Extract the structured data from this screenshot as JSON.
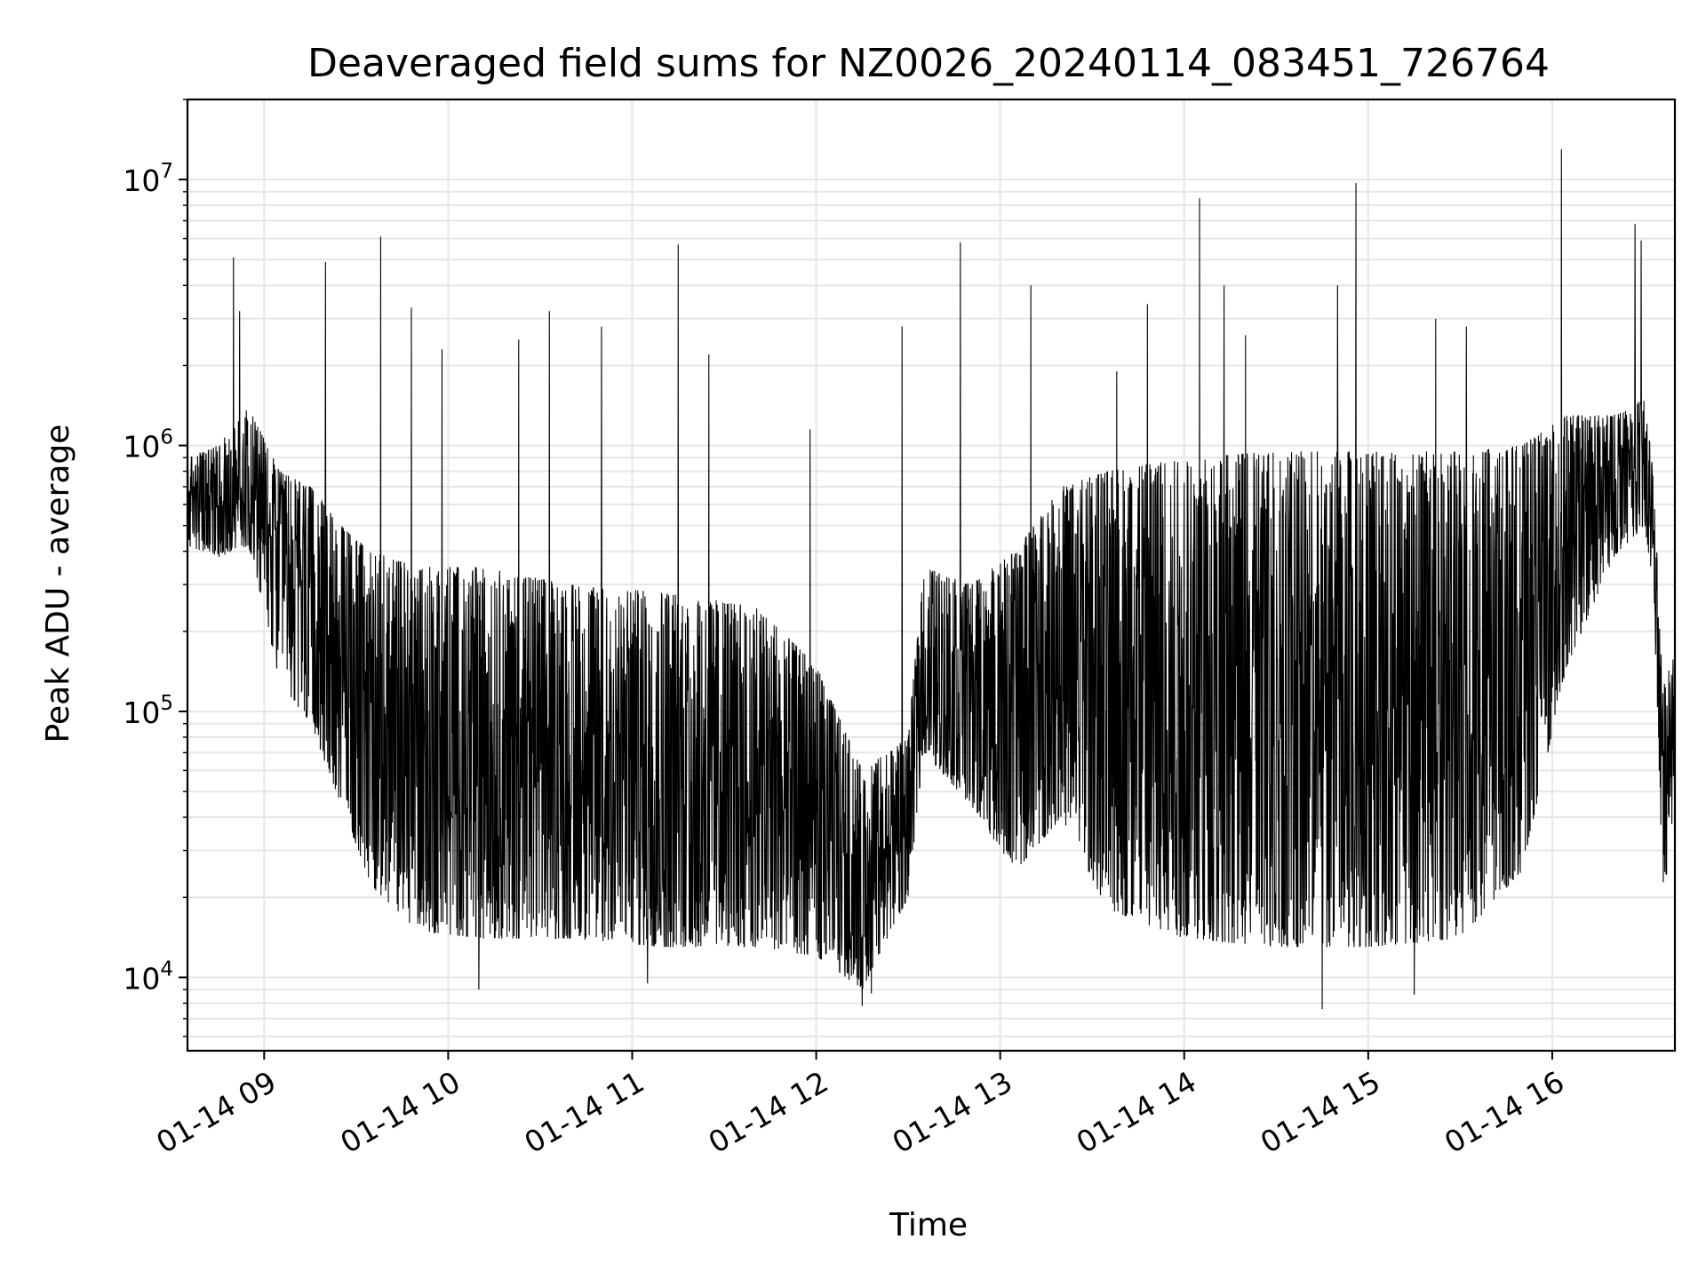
{
  "chart_data": {
    "type": "line",
    "title": "Deaveraged field sums for NZ0026_20240114_083451_726764",
    "xlabel": "Time",
    "ylabel": "Peak ADU - average",
    "yscale": "log",
    "ylim": [
      5300,
      20000000
    ],
    "xlim": [
      "2024-01-14 08:35",
      "2024-01-14 16:40"
    ],
    "grid": true,
    "line_color": "#000000",
    "grid_color": "#e6e6e6",
    "x_ticks": [
      {
        "value": "2024-01-14 09:00",
        "label": "01-14 09"
      },
      {
        "value": "2024-01-14 10:00",
        "label": "01-14 10"
      },
      {
        "value": "2024-01-14 11:00",
        "label": "01-14 11"
      },
      {
        "value": "2024-01-14 12:00",
        "label": "01-14 12"
      },
      {
        "value": "2024-01-14 13:00",
        "label": "01-14 13"
      },
      {
        "value": "2024-01-14 14:00",
        "label": "01-14 14"
      },
      {
        "value": "2024-01-14 15:00",
        "label": "01-14 15"
      },
      {
        "value": "2024-01-14 16:00",
        "label": "01-14 16"
      }
    ],
    "y_ticks": [
      {
        "value": 10000,
        "base": "10",
        "exp": "4"
      },
      {
        "value": 100000,
        "base": "10",
        "exp": "5"
      },
      {
        "value": 1000000,
        "base": "10",
        "exp": "6"
      },
      {
        "value": 10000000,
        "base": "10",
        "exp": "7"
      }
    ],
    "envelope": [
      {
        "t": "2024-01-14 08:35",
        "low": 420000,
        "high": 900000
      },
      {
        "t": "2024-01-14 08:45",
        "low": 380000,
        "high": 1000000
      },
      {
        "t": "2024-01-14 08:55",
        "low": 420000,
        "high": 1400000
      },
      {
        "t": "2024-01-14 09:05",
        "low": 130000,
        "high": 800000
      },
      {
        "t": "2024-01-14 09:15",
        "low": 90000,
        "high": 700000
      },
      {
        "t": "2024-01-14 09:25",
        "low": 45000,
        "high": 500000
      },
      {
        "t": "2024-01-14 09:35",
        "low": 22000,
        "high": 400000
      },
      {
        "t": "2024-01-14 09:50",
        "low": 15000,
        "high": 350000
      },
      {
        "t": "2024-01-14 10:10",
        "low": 14000,
        "high": 350000
      },
      {
        "t": "2024-01-14 10:40",
        "low": 14000,
        "high": 300000
      },
      {
        "t": "2024-01-14 11:10",
        "low": 13000,
        "high": 280000
      },
      {
        "t": "2024-01-14 11:40",
        "low": 13000,
        "high": 250000
      },
      {
        "t": "2024-01-14 12:00",
        "low": 12000,
        "high": 150000
      },
      {
        "t": "2024-01-14 12:15",
        "low": 9000,
        "high": 60000
      },
      {
        "t": "2024-01-14 12:30",
        "low": 20000,
        "high": 80000
      },
      {
        "t": "2024-01-14 12:35",
        "low": 70000,
        "high": 350000
      },
      {
        "t": "2024-01-14 12:50",
        "low": 45000,
        "high": 300000
      },
      {
        "t": "2024-01-14 13:05",
        "low": 25000,
        "high": 400000
      },
      {
        "t": "2024-01-14 13:20",
        "low": 40000,
        "high": 700000
      },
      {
        "t": "2024-01-14 13:35",
        "low": 18000,
        "high": 800000
      },
      {
        "t": "2024-01-14 14:00",
        "low": 14000,
        "high": 900000
      },
      {
        "t": "2024-01-14 14:30",
        "low": 13000,
        "high": 950000
      },
      {
        "t": "2024-01-14 15:00",
        "low": 13000,
        "high": 950000
      },
      {
        "t": "2024-01-14 15:30",
        "low": 14000,
        "high": 950000
      },
      {
        "t": "2024-01-14 15:50",
        "low": 25000,
        "high": 1000000
      },
      {
        "t": "2024-01-14 16:05",
        "low": 150000,
        "high": 1300000
      },
      {
        "t": "2024-01-14 16:20",
        "low": 380000,
        "high": 1300000
      },
      {
        "t": "2024-01-14 16:30",
        "low": 500000,
        "high": 1500000
      },
      {
        "t": "2024-01-14 16:33",
        "low": 300000,
        "high": 800000
      },
      {
        "t": "2024-01-14 16:36",
        "low": 22000,
        "high": 120000
      },
      {
        "t": "2024-01-14 16:40",
        "low": 30000,
        "high": 180000
      }
    ],
    "spikes": [
      {
        "t": "2024-01-14 08:50",
        "value": 5100000
      },
      {
        "t": "2024-01-14 08:52",
        "value": 3200000
      },
      {
        "t": "2024-01-14 09:20",
        "value": 4900000
      },
      {
        "t": "2024-01-14 09:38",
        "value": 6100000
      },
      {
        "t": "2024-01-14 09:48",
        "value": 3300000
      },
      {
        "t": "2024-01-14 09:58",
        "value": 2300000
      },
      {
        "t": "2024-01-14 10:23",
        "value": 2500000
      },
      {
        "t": "2024-01-14 10:33",
        "value": 3200000
      },
      {
        "t": "2024-01-14 10:50",
        "value": 2800000
      },
      {
        "t": "2024-01-14 11:15",
        "value": 5700000
      },
      {
        "t": "2024-01-14 11:25",
        "value": 2200000
      },
      {
        "t": "2024-01-14 11:58",
        "value": 1150000
      },
      {
        "t": "2024-01-14 12:28",
        "value": 2800000
      },
      {
        "t": "2024-01-14 12:47",
        "value": 5800000
      },
      {
        "t": "2024-01-14 13:10",
        "value": 4000000
      },
      {
        "t": "2024-01-14 13:38",
        "value": 1900000
      },
      {
        "t": "2024-01-14 13:48",
        "value": 3400000
      },
      {
        "t": "2024-01-14 14:05",
        "value": 8500000
      },
      {
        "t": "2024-01-14 14:13",
        "value": 4000000
      },
      {
        "t": "2024-01-14 14:20",
        "value": 2600000
      },
      {
        "t": "2024-01-14 14:50",
        "value": 4000000
      },
      {
        "t": "2024-01-14 14:56",
        "value": 9700000
      },
      {
        "t": "2024-01-14 15:22",
        "value": 3000000
      },
      {
        "t": "2024-01-14 15:32",
        "value": 2800000
      },
      {
        "t": "2024-01-14 16:03",
        "value": 13000000
      },
      {
        "t": "2024-01-14 16:27",
        "value": 6800000
      },
      {
        "t": "2024-01-14 16:29",
        "value": 5900000
      }
    ],
    "dips": [
      {
        "t": "2024-01-14 10:10",
        "value": 9000
      },
      {
        "t": "2024-01-14 11:05",
        "value": 9500
      },
      {
        "t": "2024-01-14 12:15",
        "value": 7800
      },
      {
        "t": "2024-01-14 12:18",
        "value": 8700
      },
      {
        "t": "2024-01-14 14:45",
        "value": 7600
      },
      {
        "t": "2024-01-14 15:15",
        "value": 8600
      }
    ]
  }
}
